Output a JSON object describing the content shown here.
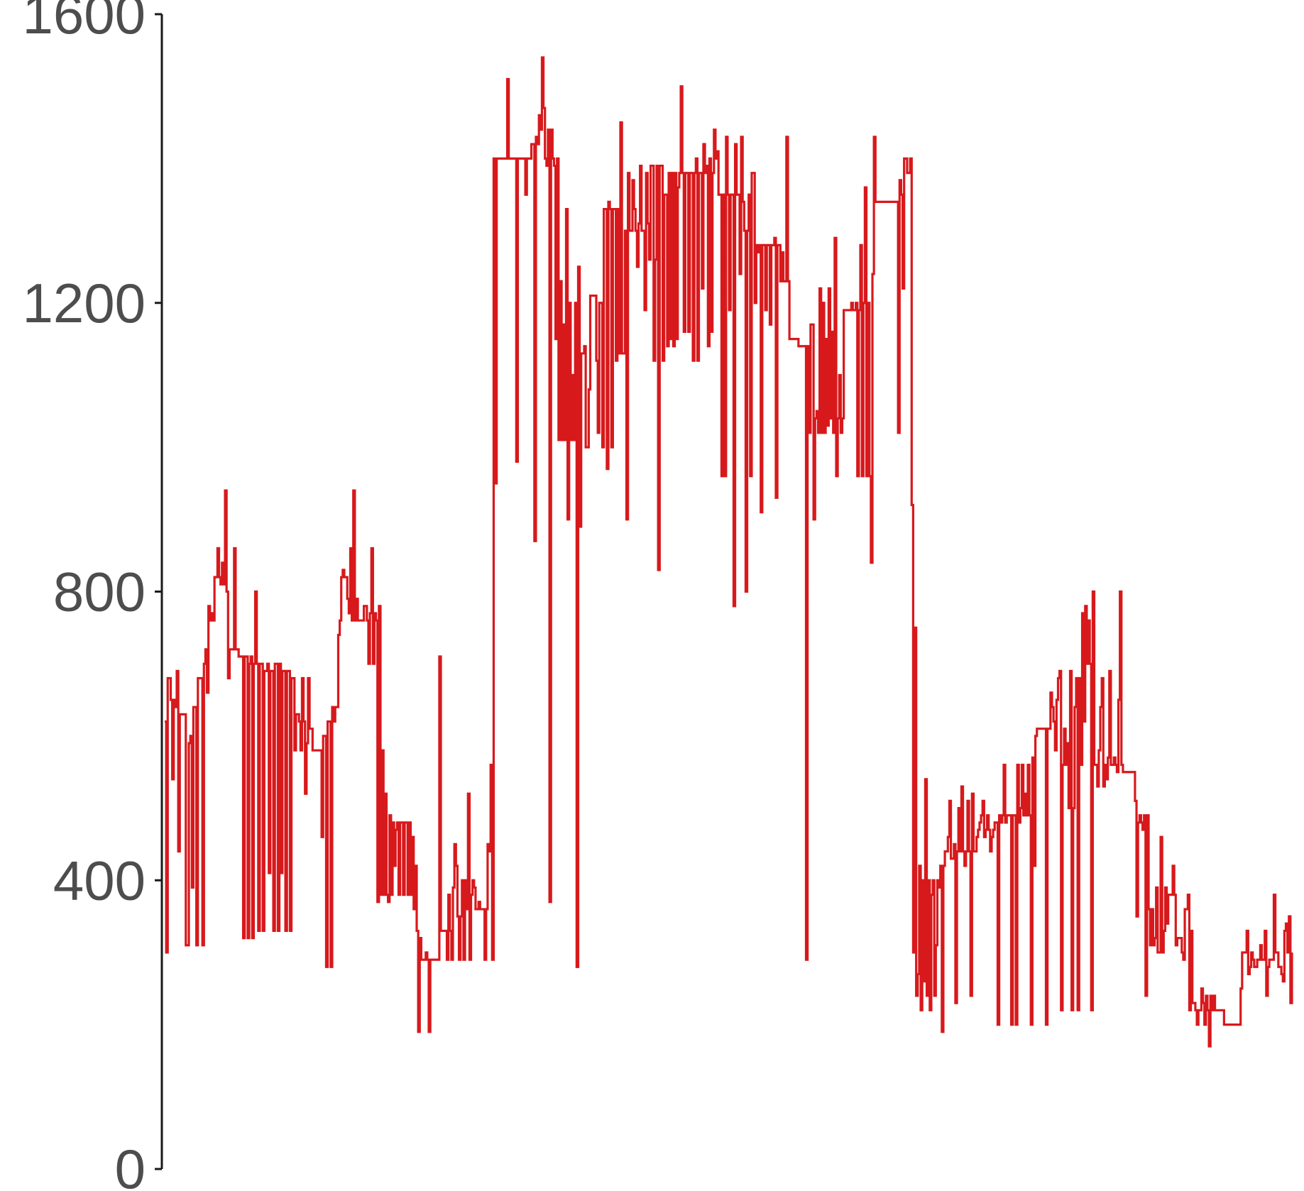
{
  "chart_data": {
    "type": "line",
    "title": "",
    "xlabel": "",
    "ylabel": "",
    "ylim": [
      0,
      1600
    ],
    "y_ticks": [
      0,
      400,
      800,
      1200,
      1600
    ],
    "y_tick_labels": [
      "0",
      "400",
      "800",
      "1200",
      "1600"
    ],
    "x_visible": false,
    "grid": false,
    "legend": "none",
    "series": [
      {
        "color": "#d7191c",
        "step": "hv",
        "values": [
          620,
          300,
          680,
          680,
          650,
          540,
          650,
          640,
          690,
          440,
          630,
          630,
          630,
          630,
          310,
          310,
          590,
          600,
          390,
          640,
          640,
          310,
          680,
          680,
          680,
          310,
          700,
          720,
          660,
          780,
          760,
          770,
          760,
          820,
          820,
          860,
          820,
          810,
          840,
          810,
          940,
          800,
          680,
          720,
          720,
          720,
          860,
          720,
          720,
          710,
          710,
          710,
          320,
          710,
          710,
          320,
          700,
          710,
          320,
          700,
          800,
          700,
          330,
          700,
          700,
          330,
          690,
          690,
          700,
          410,
          690,
          690,
          330,
          700,
          700,
          330,
          700,
          410,
          690,
          690,
          330,
          690,
          690,
          330,
          680,
          680,
          580,
          630,
          630,
          620,
          580,
          680,
          620,
          520,
          590,
          680,
          610,
          610,
          580,
          580,
          580,
          580,
          580,
          580,
          460,
          600,
          600,
          280,
          620,
          620,
          280,
          640,
          620,
          640,
          640,
          740,
          760,
          820,
          830,
          820,
          820,
          790,
          770,
          860,
          760,
          940,
          760,
          790,
          760,
          760,
          760,
          760,
          780,
          780,
          760,
          700,
          770,
          860,
          700,
          770,
          760,
          370,
          780,
          380,
          580,
          380,
          520,
          380,
          370,
          490,
          380,
          480,
          420,
          470,
          480,
          380,
          480,
          480,
          380,
          480,
          480,
          380,
          480,
          380,
          460,
          360,
          420,
          330,
          190,
          320,
          290,
          290,
          290,
          300,
          290,
          190,
          290,
          290,
          290,
          290,
          290,
          290,
          710,
          330,
          330,
          330,
          330,
          290,
          380,
          330,
          290,
          390,
          450,
          420,
          350,
          290,
          350,
          400,
          290,
          400,
          360,
          520,
          290,
          380,
          400,
          390,
          360,
          360,
          370,
          360,
          360,
          360,
          290,
          360,
          450,
          440,
          560,
          290,
          1400,
          950,
          1400,
          1400,
          1400,
          1400,
          1400,
          1400,
          1400,
          1510,
          1400,
          1400,
          1400,
          1400,
          1400,
          980,
          1400,
          1400,
          1400,
          1400,
          1400,
          1350,
          1400,
          1400,
          1400,
          1420,
          1420,
          870,
          1430,
          1420,
          1460,
          1440,
          1540,
          1470,
          1400,
          1390,
          1440,
          370,
          1440,
          1400,
          1390,
          1150,
          1400,
          1010,
          1230,
          1010,
          1170,
          1010,
          1330,
          900,
          1200,
          1010,
          1100,
          1010,
          1200,
          280,
          1250,
          890,
          1130,
          1130,
          1140,
          1000,
          1000,
          1080,
          1210,
          1210,
          1210,
          1210,
          1120,
          1020,
          1200,
          1200,
          1000,
          1330,
          1330,
          970,
          1340,
          1330,
          1000,
          1330,
          1330,
          1120,
          1330,
          1130,
          1450,
          1130,
          1130,
          1300,
          900,
          1380,
          1300,
          1300,
          1370,
          1330,
          1300,
          1250,
          1310,
          1390,
          1300,
          1300,
          1190,
          1380,
          1310,
          1260,
          1390,
          1390,
          1120,
          1260,
          1390,
          830,
          1390,
          1390,
          1120,
          1350,
          1350,
          1140,
          1380,
          1150,
          1380,
          1140,
          1380,
          1150,
          1360,
          1380,
          1500,
          1380,
          1160,
          1380,
          1380,
          1160,
          1380,
          1380,
          1120,
          1380,
          1400,
          1120,
          1380,
          1380,
          1220,
          1420,
          1380,
          1390,
          1140,
          1400,
          1160,
          1380,
          1440,
          1400,
          1410,
          1350,
          1350,
          960,
          1350,
          960,
          1430,
          1350,
          1190,
          1350,
          1350,
          780,
          1420,
          1350,
          1350,
          1240,
          1430,
          1340,
          1300,
          800,
          1300,
          1350,
          960,
          1380,
          1380,
          1200,
          1280,
          1270,
          1280,
          910,
          1280,
          1280,
          1190,
          1280,
          1280,
          1170,
          1280,
          1280,
          1290,
          930,
          1280,
          1280,
          1230,
          1270,
          1230,
          1230,
          1430,
          1230,
          1150,
          1150,
          1150,
          1150,
          1150,
          1150,
          1140,
          1140,
          1140,
          1140,
          1140,
          290,
          1140,
          1020,
          1170,
          1170,
          900,
          1040,
          1050,
          1020,
          1220,
          1020,
          1200,
          1020,
          1150,
          1030,
          1220,
          1040,
          1160,
          1020,
          1290,
          960,
          1040,
          1100,
          1020,
          1040,
          1190,
          1190,
          1190,
          1190,
          1190,
          1200,
          1190,
          1190,
          1200,
          960,
          1190,
          1280,
          960,
          1200,
          1360,
          960,
          1200,
          960,
          840,
          1240,
          1430,
          1340,
          1340,
          1340,
          1340,
          1340,
          1340,
          1340,
          1340,
          1340,
          1340,
          1340,
          1340,
          1340,
          1340,
          1340,
          1020,
          1370,
          1350,
          1220,
          1400,
          1400,
          1380,
          1380,
          1400,
          920,
          300,
          750,
          240,
          270,
          420,
          220,
          400,
          260,
          540,
          240,
          400,
          220,
          380,
          400,
          240,
          310,
          400,
          390,
          420,
          190,
          420,
          440,
          440,
          460,
          510,
          430,
          430,
          450,
          230,
          440,
          500,
          440,
          530,
          440,
          420,
          440,
          510,
          440,
          240,
          520,
          440,
          440,
          460,
          470,
          480,
          490,
          510,
          460,
          470,
          490,
          470,
          440,
          460,
          470,
          480,
          480,
          200,
          490,
          480,
          490,
          560,
          480,
          490,
          490,
          490,
          200,
          490,
          490,
          200,
          560,
          480,
          500,
          560,
          490,
          520,
          490,
          560,
          490,
          200,
          570,
          420,
          600,
          610,
          610,
          610,
          610,
          610,
          610,
          200,
          610,
          610,
          660,
          640,
          620,
          580,
          650,
          680,
          690,
          220,
          560,
          610,
          560,
          590,
          500,
          690,
          220,
          500,
          640,
          680,
          220,
          680,
          560,
          770,
          620,
          780,
          700,
          760,
          700,
          220,
          800,
          560,
          560,
          530,
          580,
          640,
          680,
          530,
          560,
          540,
          570,
          690,
          560,
          560,
          570,
          560,
          550,
          650,
          800,
          560,
          550,
          550,
          550,
          550,
          550,
          550,
          550,
          550,
          510,
          350,
          480,
          490,
          480,
          470,
          490,
          240,
          490,
          360,
          310,
          360,
          310,
          320,
          390,
          300,
          300,
          460,
          300,
          330,
          390,
          340,
          380,
          380,
          380,
          420,
          380,
          310,
          320,
          320,
          320,
          300,
          290,
          360,
          360,
          380,
          220,
          330,
          230,
          230,
          220,
          200,
          220,
          220,
          250,
          230,
          200,
          240,
          220,
          170,
          240,
          220,
          240,
          220,
          220,
          220,
          220,
          220,
          220,
          200,
          200,
          200,
          200,
          200,
          200,
          200,
          200,
          200,
          200,
          200,
          250,
          300,
          300,
          300,
          330,
          270,
          280,
          300,
          290,
          280,
          280,
          290,
          290,
          310,
          290,
          290,
          330,
          240,
          280,
          290,
          290,
          290,
          380,
          300,
          300,
          280,
          280,
          270,
          260,
          330,
          340,
          300,
          350,
          230,
          300
        ]
      }
    ]
  }
}
